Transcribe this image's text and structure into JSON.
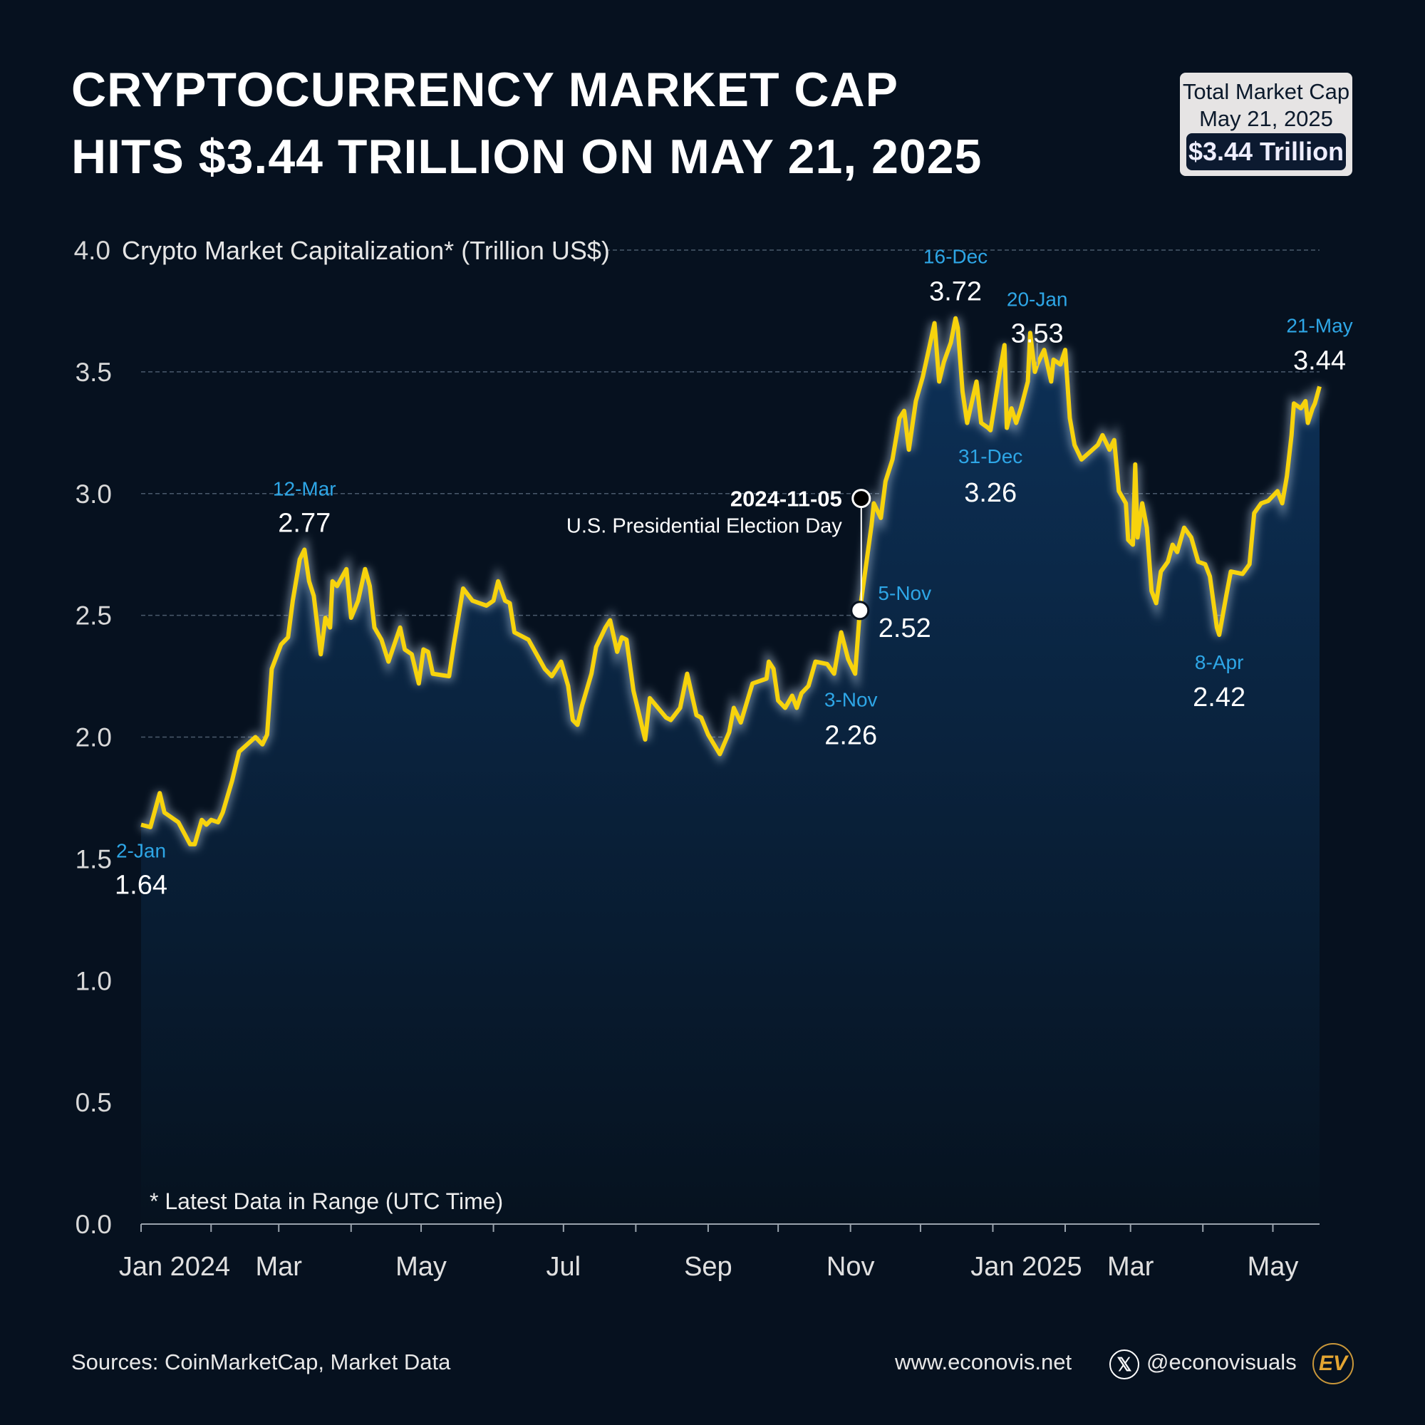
{
  "title": {
    "line1": "CRYPTOCURRENCY MARKET CAP",
    "line2": "HITS $3.44 TRILLION ON MAY 21, 2025"
  },
  "summary_box": {
    "line1": "Total Market Cap",
    "line2": "May 21, 2025",
    "value": "$3.44 Trillion"
  },
  "footer": {
    "sources": "Sources: CoinMarketCap, Market Data",
    "website": "www.econovis.net",
    "handle": "@econovisuals",
    "logo_text": "EV",
    "x_icon": "x-logo-icon"
  },
  "colors": {
    "background": "#06111f",
    "line": "#f7d30d",
    "area_top": "#0d3158",
    "date_label": "#2ea6e6",
    "value_label": "#ffffff",
    "logo": "#e3a532"
  },
  "chart_data": {
    "type": "area",
    "ylabel": "Crypto Market Capitalization* (Trillion US$)",
    "footnote": "* Latest Data in Range (UTC Time)",
    "ylim": [
      0,
      4.0
    ],
    "yticks": [
      "0.0",
      "0.5",
      "1.0",
      "1.5",
      "2.0",
      "2.5",
      "3.0",
      "3.5",
      "4.0"
    ],
    "xlim": [
      "2024-01-02",
      "2025-05-21"
    ],
    "x_month_ticks": [
      "2024-01-01",
      "2024-02-01",
      "2024-03-01",
      "2024-04-01",
      "2024-05-01",
      "2024-06-01",
      "2024-07-01",
      "2024-08-01",
      "2024-09-01",
      "2024-10-01",
      "2024-11-01",
      "2024-12-01",
      "2025-01-01",
      "2025-02-01",
      "2025-03-01",
      "2025-04-01",
      "2025-05-01"
    ],
    "x_labels": [
      {
        "date": "2024-01-01",
        "text": "Jan 2024"
      },
      {
        "date": "2024-03-01",
        "text": "Mar"
      },
      {
        "date": "2024-05-01",
        "text": "May"
      },
      {
        "date": "2024-07-01",
        "text": "Jul"
      },
      {
        "date": "2024-09-01",
        "text": "Sep"
      },
      {
        "date": "2024-11-01",
        "text": "Nov"
      },
      {
        "date": "2025-01-01",
        "text": "Jan 2025"
      },
      {
        "date": "2025-03-01",
        "text": "Mar"
      },
      {
        "date": "2025-05-01",
        "text": "May"
      }
    ],
    "grid": true,
    "series": [
      {
        "points": [
          [
            "2024-01-02",
            1.64
          ],
          [
            "2024-01-06",
            1.63
          ],
          [
            "2024-01-10",
            1.77
          ],
          [
            "2024-01-12",
            1.69
          ],
          [
            "2024-01-18",
            1.65
          ],
          [
            "2024-01-23",
            1.56
          ],
          [
            "2024-01-25",
            1.56
          ],
          [
            "2024-01-28",
            1.66
          ],
          [
            "2024-01-30",
            1.64
          ],
          [
            "2024-02-01",
            1.66
          ],
          [
            "2024-02-04",
            1.65
          ],
          [
            "2024-02-06",
            1.69
          ],
          [
            "2024-02-10",
            1.82
          ],
          [
            "2024-02-13",
            1.94
          ],
          [
            "2024-02-20",
            2.0
          ],
          [
            "2024-02-23",
            1.97
          ],
          [
            "2024-02-25",
            2.01
          ],
          [
            "2024-02-27",
            2.28
          ],
          [
            "2024-03-02",
            2.38
          ],
          [
            "2024-03-05",
            2.41
          ],
          [
            "2024-03-07",
            2.56
          ],
          [
            "2024-03-10",
            2.73
          ],
          [
            "2024-03-12",
            2.77
          ],
          [
            "2024-03-14",
            2.64
          ],
          [
            "2024-03-16",
            2.58
          ],
          [
            "2024-03-19",
            2.34
          ],
          [
            "2024-03-21",
            2.49
          ],
          [
            "2024-03-23",
            2.45
          ],
          [
            "2024-03-24",
            2.64
          ],
          [
            "2024-03-26",
            2.62
          ],
          [
            "2024-03-30",
            2.69
          ],
          [
            "2024-04-01",
            2.49
          ],
          [
            "2024-04-04",
            2.56
          ],
          [
            "2024-04-07",
            2.69
          ],
          [
            "2024-04-09",
            2.62
          ],
          [
            "2024-04-11",
            2.45
          ],
          [
            "2024-04-14",
            2.4
          ],
          [
            "2024-04-17",
            2.31
          ],
          [
            "2024-04-22",
            2.45
          ],
          [
            "2024-04-24",
            2.36
          ],
          [
            "2024-04-27",
            2.34
          ],
          [
            "2024-04-30",
            2.22
          ],
          [
            "2024-05-02",
            2.36
          ],
          [
            "2024-05-04",
            2.35
          ],
          [
            "2024-05-06",
            2.26
          ],
          [
            "2024-05-13",
            2.25
          ],
          [
            "2024-05-15",
            2.38
          ],
          [
            "2024-05-19",
            2.61
          ],
          [
            "2024-05-23",
            2.56
          ],
          [
            "2024-05-29",
            2.54
          ],
          [
            "2024-06-01",
            2.56
          ],
          [
            "2024-06-03",
            2.64
          ],
          [
            "2024-06-06",
            2.56
          ],
          [
            "2024-06-08",
            2.55
          ],
          [
            "2024-06-10",
            2.43
          ],
          [
            "2024-06-16",
            2.4
          ],
          [
            "2024-06-23",
            2.28
          ],
          [
            "2024-06-26",
            2.25
          ],
          [
            "2024-06-30",
            2.31
          ],
          [
            "2024-07-03",
            2.21
          ],
          [
            "2024-07-05",
            2.07
          ],
          [
            "2024-07-07",
            2.05
          ],
          [
            "2024-07-09",
            2.13
          ],
          [
            "2024-07-13",
            2.26
          ],
          [
            "2024-07-15",
            2.37
          ],
          [
            "2024-07-19",
            2.45
          ],
          [
            "2024-07-21",
            2.48
          ],
          [
            "2024-07-24",
            2.35
          ],
          [
            "2024-07-26",
            2.41
          ],
          [
            "2024-07-28",
            2.4
          ],
          [
            "2024-07-31",
            2.19
          ],
          [
            "2024-08-05",
            1.99
          ],
          [
            "2024-08-07",
            2.16
          ],
          [
            "2024-08-14",
            2.08
          ],
          [
            "2024-08-16",
            2.07
          ],
          [
            "2024-08-20",
            2.12
          ],
          [
            "2024-08-23",
            2.26
          ],
          [
            "2024-08-27",
            2.09
          ],
          [
            "2024-08-29",
            2.08
          ],
          [
            "2024-09-01",
            2.01
          ],
          [
            "2024-09-06",
            1.93
          ],
          [
            "2024-09-10",
            2.02
          ],
          [
            "2024-09-12",
            2.12
          ],
          [
            "2024-09-15",
            2.06
          ],
          [
            "2024-09-20",
            2.22
          ],
          [
            "2024-09-26",
            2.24
          ],
          [
            "2024-09-27",
            2.31
          ],
          [
            "2024-09-29",
            2.28
          ],
          [
            "2024-10-01",
            2.15
          ],
          [
            "2024-10-04",
            2.12
          ],
          [
            "2024-10-07",
            2.17
          ],
          [
            "2024-10-09",
            2.12
          ],
          [
            "2024-10-11",
            2.18
          ],
          [
            "2024-10-14",
            2.21
          ],
          [
            "2024-10-17",
            2.31
          ],
          [
            "2024-10-22",
            2.3
          ],
          [
            "2024-10-25",
            2.26
          ],
          [
            "2024-10-28",
            2.43
          ],
          [
            "2024-10-31",
            2.32
          ],
          [
            "2024-11-03",
            2.26
          ],
          [
            "2024-11-05",
            2.52
          ],
          [
            "2024-11-10",
            2.87
          ],
          [
            "2024-11-11",
            2.96
          ],
          [
            "2024-11-14",
            2.9
          ],
          [
            "2024-11-16",
            3.05
          ],
          [
            "2024-11-19",
            3.14
          ],
          [
            "2024-11-22",
            3.31
          ],
          [
            "2024-11-24",
            3.34
          ],
          [
            "2024-11-26",
            3.18
          ],
          [
            "2024-11-29",
            3.38
          ],
          [
            "2024-12-02",
            3.48
          ],
          [
            "2024-12-05",
            3.61
          ],
          [
            "2024-12-07",
            3.7
          ],
          [
            "2024-12-09",
            3.46
          ],
          [
            "2024-12-11",
            3.54
          ],
          [
            "2024-12-14",
            3.62
          ],
          [
            "2024-12-16",
            3.72
          ],
          [
            "2024-12-17",
            3.68
          ],
          [
            "2024-12-19",
            3.42
          ],
          [
            "2024-12-21",
            3.29
          ],
          [
            "2024-12-25",
            3.46
          ],
          [
            "2024-12-27",
            3.29
          ],
          [
            "2024-12-30",
            3.27
          ],
          [
            "2024-12-31",
            3.26
          ],
          [
            "2025-01-04",
            3.5
          ],
          [
            "2025-01-06",
            3.61
          ],
          [
            "2025-01-07",
            3.27
          ],
          [
            "2025-01-09",
            3.35
          ],
          [
            "2025-01-11",
            3.29
          ],
          [
            "2025-01-13",
            3.35
          ],
          [
            "2025-01-16",
            3.46
          ],
          [
            "2025-01-17",
            3.66
          ],
          [
            "2025-01-19",
            3.5
          ],
          [
            "2025-01-20",
            3.53
          ],
          [
            "2025-01-23",
            3.59
          ],
          [
            "2025-01-26",
            3.46
          ],
          [
            "2025-01-27",
            3.55
          ],
          [
            "2025-01-30",
            3.53
          ],
          [
            "2025-02-01",
            3.59
          ],
          [
            "2025-02-03",
            3.31
          ],
          [
            "2025-02-05",
            3.2
          ],
          [
            "2025-02-08",
            3.14
          ],
          [
            "2025-02-15",
            3.2
          ],
          [
            "2025-02-17",
            3.24
          ],
          [
            "2025-02-20",
            3.18
          ],
          [
            "2025-02-22",
            3.22
          ],
          [
            "2025-02-24",
            3.01
          ],
          [
            "2025-02-27",
            2.96
          ],
          [
            "2025-02-28",
            2.81
          ],
          [
            "2025-03-02",
            2.79
          ],
          [
            "2025-03-03",
            3.12
          ],
          [
            "2025-03-04",
            2.82
          ],
          [
            "2025-03-06",
            2.96
          ],
          [
            "2025-03-08",
            2.86
          ],
          [
            "2025-03-10",
            2.6
          ],
          [
            "2025-03-12",
            2.55
          ],
          [
            "2025-03-14",
            2.68
          ],
          [
            "2025-03-17",
            2.72
          ],
          [
            "2025-03-19",
            2.79
          ],
          [
            "2025-03-21",
            2.76
          ],
          [
            "2025-03-24",
            2.86
          ],
          [
            "2025-03-27",
            2.82
          ],
          [
            "2025-03-30",
            2.72
          ],
          [
            "2025-04-02",
            2.71
          ],
          [
            "2025-04-04",
            2.66
          ],
          [
            "2025-04-07",
            2.45
          ],
          [
            "2025-04-08",
            2.42
          ],
          [
            "2025-04-11",
            2.58
          ],
          [
            "2025-04-13",
            2.68
          ],
          [
            "2025-04-18",
            2.67
          ],
          [
            "2025-04-21",
            2.71
          ],
          [
            "2025-04-23",
            2.92
          ],
          [
            "2025-04-26",
            2.96
          ],
          [
            "2025-04-29",
            2.97
          ],
          [
            "2025-05-03",
            3.01
          ],
          [
            "2025-05-05",
            2.96
          ],
          [
            "2025-05-07",
            3.07
          ],
          [
            "2025-05-09",
            3.24
          ],
          [
            "2025-05-10",
            3.37
          ],
          [
            "2025-05-13",
            3.35
          ],
          [
            "2025-05-15",
            3.38
          ],
          [
            "2025-05-16",
            3.29
          ],
          [
            "2025-05-18",
            3.35
          ],
          [
            "2025-05-19",
            3.37
          ],
          [
            "2025-05-21",
            3.44
          ]
        ]
      }
    ],
    "annotations": [
      {
        "date": "2024-01-02",
        "label": "2-Jan",
        "value": "1.64"
      },
      {
        "date": "2024-03-12",
        "label": "12-Mar",
        "value": "2.77"
      },
      {
        "date": "2024-11-03",
        "label": "3-Nov",
        "value": "2.26"
      },
      {
        "date": "2024-11-05",
        "label": "5-Nov",
        "value": "2.52"
      },
      {
        "date": "2024-12-16",
        "label": "16-Dec",
        "value": "3.72"
      },
      {
        "date": "2024-12-31",
        "label": "31-Dec",
        "value": "3.26"
      },
      {
        "date": "2025-01-20",
        "label": "20-Jan",
        "value": "3.53"
      },
      {
        "date": "2025-04-08",
        "label": "8-Apr",
        "value": "2.42"
      },
      {
        "date": "2025-05-21",
        "label": "21-May",
        "value": "3.44"
      }
    ],
    "event": {
      "date": "2024-11-05",
      "date_text": "2024-11-05",
      "text": "U.S. Presidential Election Day"
    }
  }
}
